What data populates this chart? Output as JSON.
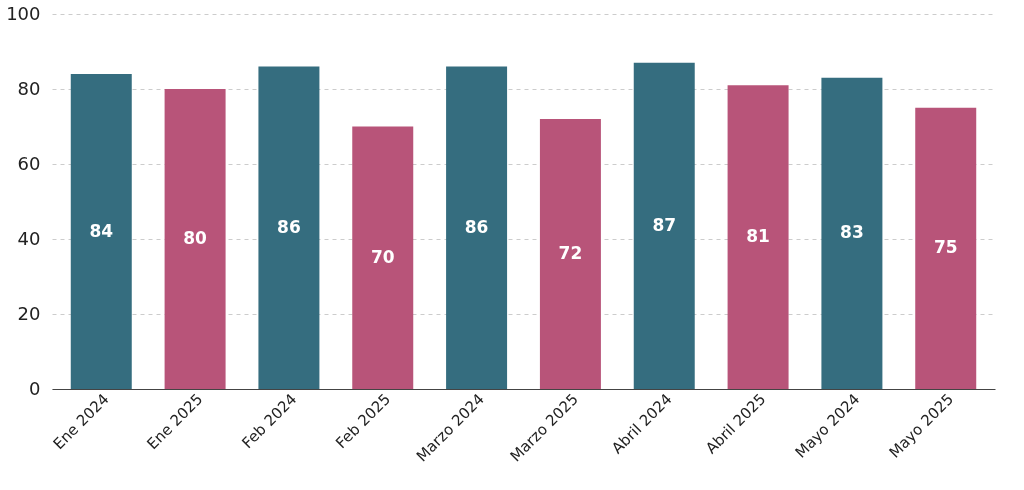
{
  "chart_data": {
    "type": "bar",
    "categories": [
      "Ene 2024",
      "Ene 2025",
      "Feb 2024",
      "Feb 2025",
      "Marzo 2024",
      "Marzo 2025",
      "Abril 2024",
      "Abril 2025",
      "Mayo 2024",
      "Mayo 2025"
    ],
    "values": [
      84,
      80,
      86,
      70,
      86,
      72,
      87,
      81,
      83,
      75
    ],
    "colors": [
      "#356d7f",
      "#b85479",
      "#356d7f",
      "#b85479",
      "#356d7f",
      "#b85479",
      "#356d7f",
      "#b85479",
      "#356d7f",
      "#b85479"
    ],
    "ylim": [
      0,
      100
    ],
    "yticks": [
      0,
      20,
      40,
      60,
      80,
      100
    ],
    "grid": "y",
    "data_labels": true
  }
}
